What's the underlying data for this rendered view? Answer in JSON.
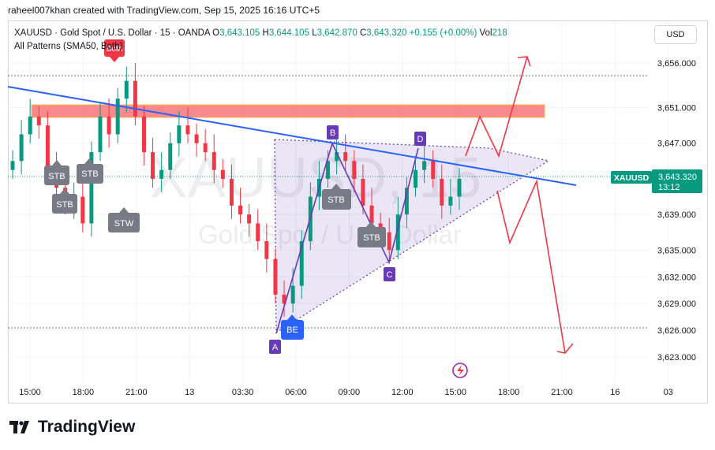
{
  "header": {
    "text": "raheel007khan created with TradingView.com, Sep 15, 2025 16:16 UTC+5"
  },
  "legend": {
    "title": "XAUUSD · Gold Spot / U.S. Dollar · 15 · OANDA",
    "o_label": "O",
    "o_value": "3,643.105",
    "h_label": "H",
    "h_value": "3,644.105",
    "l_label": "L",
    "l_value": "3,642.870",
    "c_label": "C",
    "c_value": "3,643.320",
    "change": "+0.155 (+0.00%)",
    "vol_label": "Vol",
    "vol_value": "218",
    "indicator": "All Patterns (SMA50, Both)"
  },
  "currency_button": "USD",
  "watermark": {
    "symbol": "XAUUSD, 15",
    "name": "Gold Spot / U.S. Dollar"
  },
  "brand": "TradingView",
  "price_tag": {
    "symbol": "XAUUSD",
    "price": "3,643.320",
    "countdown": "13:12",
    "color": "#089981"
  },
  "colors": {
    "up": "#089981",
    "down": "#f23645",
    "trendline": "#2962ff",
    "pattern": "#673ab7",
    "projection": "#f23645",
    "zone": "#f77c80"
  },
  "chart_data": {
    "type": "candlestick",
    "symbol": "XAUUSD",
    "interval": "15",
    "y_ticks": [
      3656.0,
      3651.0,
      3647.0,
      3639.0,
      3635.0,
      3632.0,
      3629.0,
      3626.0,
      3623.0
    ],
    "y_tick_labels": [
      "3,656.000",
      "3,651.000",
      "3,647.000",
      "3,639.000",
      "3,635.000",
      "3,632.000",
      "3,629.000",
      "3,626.000",
      "3,623.000"
    ],
    "x_tick_labels": [
      "15:00",
      "18:00",
      "21:00",
      "13",
      "03:30",
      "06:00",
      "09:00",
      "12:00",
      "15:00",
      "18:00",
      "21:00",
      "16",
      "03"
    ],
    "ylim": [
      3621.5,
      3658.5
    ],
    "last_price": 3643.32,
    "pattern_points": [
      {
        "label": "A",
        "price": 3625.8
      },
      {
        "label": "B",
        "price": 3646.7
      },
      {
        "label": "C",
        "price": 3633.7
      },
      {
        "label": "D",
        "price": 3645.6
      }
    ],
    "pattern_badges": [
      "STB",
      "STB",
      "STB",
      "STW",
      "STB",
      "STB",
      "BE",
      "Both"
    ],
    "resistance_zone": [
      3650.2,
      3651.6
    ],
    "closes": [
      3645,
      3648,
      3650,
      3649,
      3644,
      3642,
      3640,
      3641,
      3638,
      3646,
      3650,
      3648,
      3652,
      3654,
      3650,
      3646,
      3643,
      3644,
      3647,
      3649,
      3648,
      3647,
      3646,
      3644,
      3643,
      3640,
      3639,
      3638,
      3636,
      3634,
      3630,
      3629,
      3631,
      3636,
      3641,
      3643,
      3645,
      3646,
      3645,
      3643,
      3640,
      3638,
      3637,
      3635,
      3639,
      3642,
      3644,
      3645,
      3643,
      3640,
      3641,
      3643
    ]
  }
}
